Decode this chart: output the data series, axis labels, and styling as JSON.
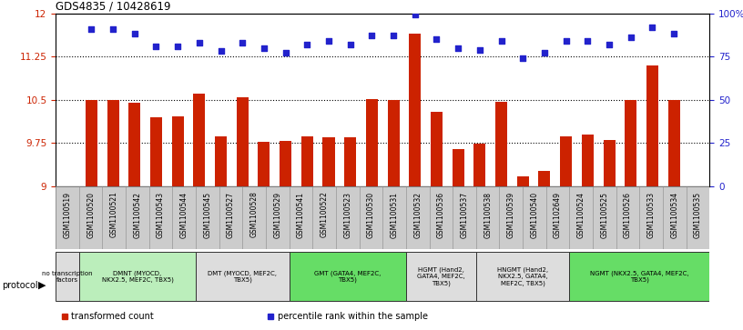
{
  "title": "GDS4835 / 10428619",
  "samples": [
    "GSM1100519",
    "GSM1100520",
    "GSM1100521",
    "GSM1100542",
    "GSM1100543",
    "GSM1100544",
    "GSM1100545",
    "GSM1100527",
    "GSM1100528",
    "GSM1100529",
    "GSM1100541",
    "GSM1100522",
    "GSM1100523",
    "GSM1100530",
    "GSM1100531",
    "GSM1100532",
    "GSM1100536",
    "GSM1100537",
    "GSM1100538",
    "GSM1100539",
    "GSM1100540",
    "GSM1102649",
    "GSM1100524",
    "GSM1100525",
    "GSM1100526",
    "GSM1100533",
    "GSM1100534",
    "GSM1100535"
  ],
  "bar_values": [
    10.5,
    10.49,
    10.45,
    10.2,
    10.22,
    10.6,
    9.87,
    10.55,
    9.78,
    9.79,
    9.86,
    9.85,
    9.85,
    10.52,
    10.5,
    11.65,
    10.3,
    9.65,
    9.74,
    10.47,
    9.18,
    9.27,
    9.86,
    9.9,
    9.8,
    10.5,
    11.1,
    10.5
  ],
  "dot_values": [
    91,
    91,
    88,
    81,
    81,
    83,
    78,
    83,
    80,
    77,
    82,
    84,
    82,
    87,
    87,
    99,
    85,
    80,
    79,
    84,
    74,
    77,
    84,
    84,
    82,
    86,
    92,
    88
  ],
  "ylim_left": [
    9.0,
    12.0
  ],
  "ylim_right": [
    0,
    100
  ],
  "yticks_left": [
    9.0,
    9.75,
    10.5,
    11.25,
    12.0
  ],
  "ytick_labels_left": [
    "9",
    "9.75",
    "10.5",
    "11.25",
    "12"
  ],
  "yticks_right": [
    0,
    25,
    50,
    75,
    100
  ],
  "ytick_labels_right": [
    "0",
    "25",
    "50",
    "75",
    "100%"
  ],
  "hlines": [
    9.75,
    10.5,
    11.25
  ],
  "bar_color": "#cc2200",
  "dot_color": "#2222cc",
  "bg_color": "#ffffff",
  "protocol_groups": [
    {
      "label": "no transcription\nfactors",
      "start": 0,
      "end": 1,
      "color": "#dddddd"
    },
    {
      "label": "DMNT (MYOCD,\nNKX2.5, MEF2C, TBX5)",
      "start": 1,
      "end": 6,
      "color": "#bbeebb"
    },
    {
      "label": "DMT (MYOCD, MEF2C,\nTBX5)",
      "start": 6,
      "end": 10,
      "color": "#dddddd"
    },
    {
      "label": "GMT (GATA4, MEF2C,\nTBX5)",
      "start": 10,
      "end": 15,
      "color": "#66dd66"
    },
    {
      "label": "HGMT (Hand2,\nGATA4, MEF2C,\nTBX5)",
      "start": 15,
      "end": 18,
      "color": "#dddddd"
    },
    {
      "label": "HNGMT (Hand2,\nNKX2.5, GATA4,\nMEF2C, TBX5)",
      "start": 18,
      "end": 22,
      "color": "#dddddd"
    },
    {
      "label": "NGMT (NKX2.5, GATA4, MEF2C,\nTBX5)",
      "start": 22,
      "end": 28,
      "color": "#66dd66"
    }
  ],
  "legend_items": [
    {
      "color": "#cc2200",
      "label": "transformed count"
    },
    {
      "color": "#2222cc",
      "label": "percentile rank within the sample"
    }
  ],
  "sample_box_color": "#cccccc"
}
